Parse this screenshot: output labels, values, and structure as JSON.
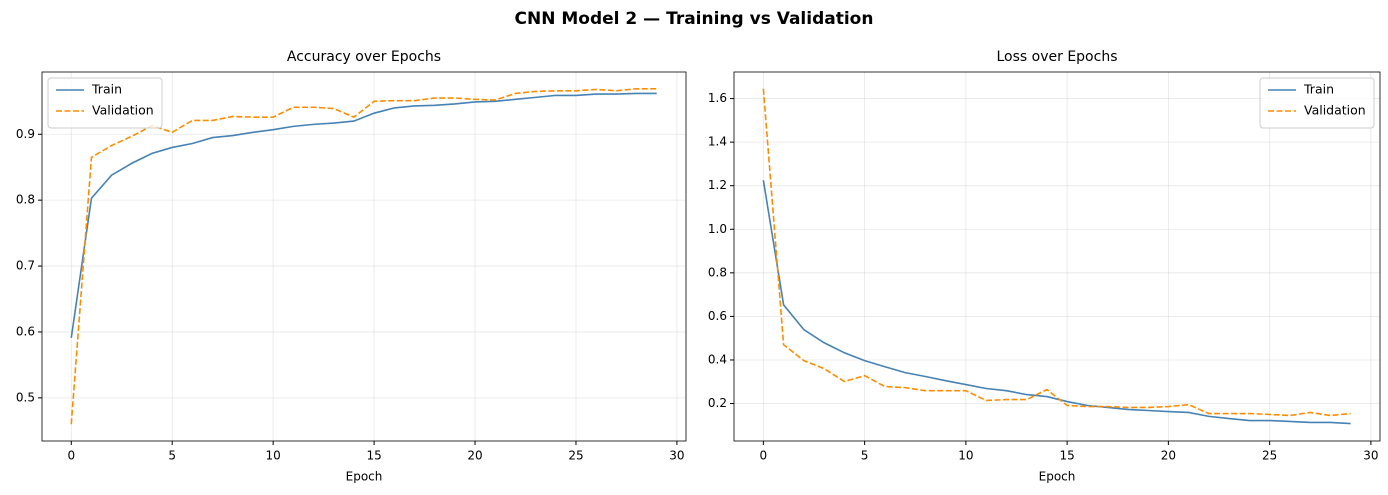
{
  "title": "CNN Model 2 — Training vs Validation",
  "chart_data": [
    {
      "type": "line",
      "title": "Accuracy over Epochs",
      "x_label": "Epoch",
      "x": [
        0,
        1,
        2,
        3,
        4,
        5,
        6,
        7,
        8,
        9,
        10,
        11,
        12,
        13,
        14,
        15,
        16,
        17,
        18,
        19,
        20,
        21,
        22,
        23,
        24,
        25,
        26,
        27,
        28,
        29
      ],
      "series": [
        {
          "name": "Train",
          "color": "#4682b4",
          "linestyle": "solid",
          "values": [
            0.591,
            0.803,
            0.838,
            0.856,
            0.871,
            0.88,
            0.886,
            0.895,
            0.898,
            0.903,
            0.907,
            0.912,
            0.915,
            0.917,
            0.92,
            0.932,
            0.94,
            0.943,
            0.944,
            0.946,
            0.949,
            0.95,
            0.953,
            0.956,
            0.959,
            0.959,
            0.961,
            0.961,
            0.962,
            0.962
          ]
        },
        {
          "name": "Validation",
          "color": "#ff8c00",
          "linestyle": "dashed",
          "values": [
            0.46,
            0.865,
            0.883,
            0.897,
            0.913,
            0.903,
            0.921,
            0.921,
            0.927,
            0.926,
            0.926,
            0.941,
            0.941,
            0.939,
            0.926,
            0.95,
            0.951,
            0.951,
            0.955,
            0.955,
            0.953,
            0.952,
            0.962,
            0.965,
            0.966,
            0.966,
            0.968,
            0.966,
            0.969,
            0.969
          ]
        }
      ],
      "xlim": [
        -1.45,
        30.45
      ],
      "xticks": [
        0,
        5,
        10,
        15,
        20,
        25,
        30
      ],
      "ylim": [
        0.4345,
        0.9945
      ],
      "yticks": [
        0.5,
        0.6,
        0.7,
        0.8,
        0.9
      ],
      "grid": true,
      "legend": "upper left"
    },
    {
      "type": "line",
      "title": "Loss over Epochs",
      "x_label": "Epoch",
      "x": [
        0,
        1,
        2,
        3,
        4,
        5,
        6,
        7,
        8,
        9,
        10,
        11,
        12,
        13,
        14,
        15,
        16,
        17,
        18,
        19,
        20,
        21,
        22,
        23,
        24,
        25,
        26,
        27,
        28,
        29
      ],
      "series": [
        {
          "name": "Train",
          "color": "#4682b4",
          "linestyle": "solid",
          "values": [
            1.225,
            0.653,
            0.539,
            0.479,
            0.433,
            0.397,
            0.369,
            0.342,
            0.324,
            0.305,
            0.287,
            0.269,
            0.259,
            0.241,
            0.232,
            0.209,
            0.191,
            0.182,
            0.173,
            0.168,
            0.163,
            0.159,
            0.141,
            0.131,
            0.122,
            0.122,
            0.118,
            0.113,
            0.113,
            0.108
          ]
        },
        {
          "name": "Validation",
          "color": "#ff8c00",
          "linestyle": "dashed",
          "values": [
            1.645,
            0.47,
            0.397,
            0.36,
            0.301,
            0.328,
            0.278,
            0.273,
            0.259,
            0.259,
            0.259,
            0.214,
            0.218,
            0.218,
            0.264,
            0.191,
            0.186,
            0.186,
            0.182,
            0.182,
            0.186,
            0.195,
            0.154,
            0.154,
            0.154,
            0.15,
            0.145,
            0.159,
            0.145,
            0.154
          ]
        }
      ],
      "xlim": [
        -1.45,
        30.45
      ],
      "xticks": [
        0,
        5,
        10,
        15,
        20,
        25,
        30
      ],
      "ylim": [
        0.028,
        1.722
      ],
      "yticks": [
        0.2,
        0.4,
        0.6,
        0.8,
        {
          "value": 1.0,
          "label": "1.0"
        },
        1.2,
        1.4,
        1.6
      ],
      "grid": true,
      "legend": "upper right"
    }
  ]
}
